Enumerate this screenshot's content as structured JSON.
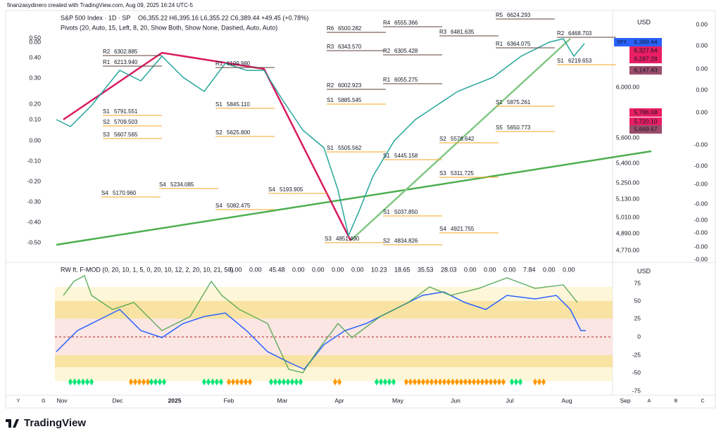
{
  "header": {
    "credit": "finanzasydinero created with TradingView.com, Aug 09, 2025 16:24 UTC-5"
  },
  "main": {
    "symbol": "S&P 500 Index · 1D · SP",
    "ohlc": "O6,355.22 H6,395.16 L6,355.22 C6,389.44 +49.45 (+0.78%)",
    "pivots": "Pivots (20, Auto, 15, Left, 8, 20, Show Both, Show None, Dashed, Auto, Auto)",
    "currency": "USD",
    "price_axis": [
      "6,000.00",
      "5,600.00",
      "5,400.00",
      "5,250.00",
      "5,130.00",
      "5,010.00",
      "4,890.00",
      "4,770.00"
    ],
    "left_axis": [
      "0.50",
      "0.00",
      "0.40",
      "0.30",
      "0.20",
      "0.10",
      "0.00",
      "-0.10",
      "-0.20",
      "-0.30",
      "-0.40",
      "-0.50"
    ],
    "right_axis": [
      "0.00",
      "0.00",
      "0.00",
      "0.00",
      "0.00",
      "-0.00",
      "-0.00",
      "-0.00",
      "-0.00",
      "-0.00",
      "-0.00",
      "-0.00",
      "-0.00"
    ],
    "tags": [
      {
        "label": "SPX",
        "price": "6,389.44"
      },
      {
        "price": "6,327.64"
      },
      {
        "price": "6,287.28"
      },
      {
        "price": "6,147.43"
      },
      {
        "price": "5,786.08"
      },
      {
        "price": "5,720.10"
      },
      {
        "price": "5,669.67"
      }
    ],
    "pivot_labels": [
      {
        "level": "R2",
        "value": "6302.885"
      },
      {
        "level": "R1",
        "value": "6213.940"
      },
      {
        "level": "S1",
        "value": "5791.551"
      },
      {
        "level": "S2",
        "value": "5709.503"
      },
      {
        "level": "S3",
        "value": "5607.565"
      },
      {
        "level": "R2",
        "value": "6305.428"
      },
      {
        "level": "R1",
        "value": "6055.275"
      },
      {
        "level": "S1",
        "value": "5885.545"
      },
      {
        "level": "R3",
        "value": "6343.570"
      },
      {
        "level": "R2",
        "value": "6002.923"
      },
      {
        "level": "R1",
        "value": "6199.980"
      },
      {
        "level": "S1",
        "value": "5845.110"
      },
      {
        "level": "S2",
        "value": "5625.800"
      },
      {
        "level": "S4",
        "value": "5082.475"
      },
      {
        "level": "S4",
        "value": "5234.085"
      },
      {
        "level": "S4",
        "value": "5193.905"
      },
      {
        "level": "S1",
        "value": "5037.850"
      },
      {
        "level": "S2",
        "value": "4834.826"
      },
      {
        "level": "S3",
        "value": "4851.490"
      },
      {
        "level": "R4",
        "value": "6555.366"
      },
      {
        "level": "S4",
        "value": "4921.755"
      },
      {
        "level": "R5",
        "value": "6624.293"
      },
      {
        "level": "R2",
        "value": "6468.703"
      },
      {
        "level": "R1",
        "value": "6364.075"
      },
      {
        "level": "S1",
        "value": "5875.261"
      },
      {
        "level": "S2",
        "value": "5578.642"
      },
      {
        "level": "S3",
        "value": "5311.725"
      },
      {
        "level": "R3",
        "value": "6481.635"
      },
      {
        "level": "S1",
        "value": "6219.653"
      },
      {
        "level": "S5",
        "value": "5650.773"
      },
      {
        "level": "S4",
        "value": "5170.960"
      },
      {
        "level": "S1",
        "value": "5445.158"
      },
      {
        "level": "R6",
        "value": "6500.282"
      },
      {
        "level": "S1",
        "value": "5505.562"
      }
    ]
  },
  "oscillator": {
    "title": "RW ft. F-MOD (0, 20, 10, 1, 5, 0, 20, 10, 12, 2, 20, 10, 21, 50)",
    "values": [
      "0.00",
      "0.00",
      "45.48",
      "0.00",
      "0.00",
      "0.00",
      "0.00",
      "10.23",
      "18.65",
      "35.53",
      "28.03",
      "0.00",
      "0.00",
      "0.00",
      "7.84",
      "0.00",
      "0.00"
    ],
    "currency": "USD",
    "axis": [
      "75",
      "50",
      "25",
      "0",
      "-25",
      "-50",
      "-75"
    ]
  },
  "time_axis": [
    "Nov",
    "Dec",
    "2025",
    "Feb",
    "Mar",
    "Apr",
    "May",
    "Jun",
    "Jul",
    "Aug",
    "Sep"
  ],
  "corner": [
    "Y",
    "G",
    "A",
    "B",
    "C"
  ],
  "footer": {
    "logo": "TradingView"
  }
}
